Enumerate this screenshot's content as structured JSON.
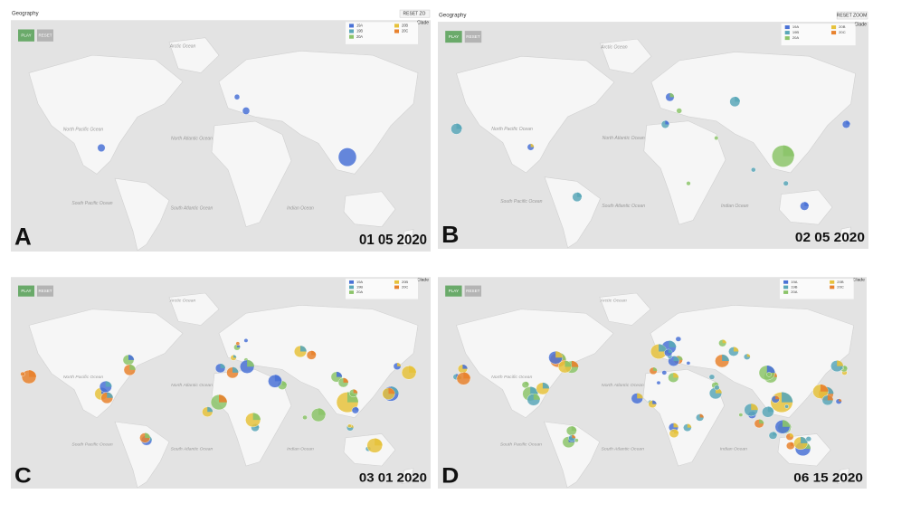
{
  "panels": [
    {
      "label": "A",
      "date": "01 05 2020",
      "title": "Geography",
      "reset_zoom": "RESET ZO"
    },
    {
      "label": "B",
      "date": "02 05 2020",
      "title": "Geography",
      "reset_zoom": "RESET ZOOM"
    },
    {
      "label": "C",
      "date": "03 01 2020"
    },
    {
      "label": "D",
      "date": "06 15 2020"
    }
  ],
  "controls": {
    "play": "PLAY",
    "reset": "RESET"
  },
  "legend": {
    "title": "Clade",
    "items": [
      {
        "name": "19A",
        "color": "#4a72d6"
      },
      {
        "name": "19B",
        "color": "#5aa7b8"
      },
      {
        "name": "20A",
        "color": "#8cc46a"
      },
      {
        "name": "20B",
        "color": "#e6c23c"
      },
      {
        "name": "20C",
        "color": "#e8822e"
      }
    ]
  },
  "oceans": [
    "Arctic Ocean",
    "North Pacific Ocean",
    "North Atlantic Ocean",
    "South Pacific Ocean",
    "South Atlantic Ocean",
    "Indian Ocean"
  ]
}
